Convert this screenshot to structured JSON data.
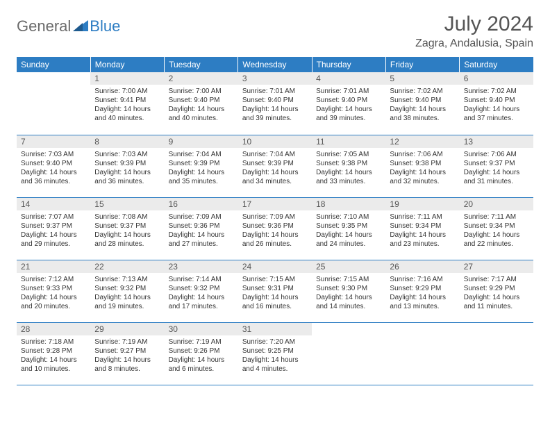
{
  "logo": {
    "general": "General",
    "blue": "Blue"
  },
  "title": "July 2024",
  "location": "Zagra, Andalusia, Spain",
  "colors": {
    "header_bg": "#2d7dc3",
    "header_text": "#ffffff",
    "daynum_bg": "#ebebeb",
    "border": "#2d7dc3",
    "body_text": "#333333",
    "title_text": "#555555"
  },
  "weekdays": [
    "Sunday",
    "Monday",
    "Tuesday",
    "Wednesday",
    "Thursday",
    "Friday",
    "Saturday"
  ],
  "weeks": [
    [
      {
        "n": "",
        "sunrise": "",
        "sunset": "",
        "daylight": ""
      },
      {
        "n": "1",
        "sunrise": "Sunrise: 7:00 AM",
        "sunset": "Sunset: 9:41 PM",
        "daylight": "Daylight: 14 hours and 40 minutes."
      },
      {
        "n": "2",
        "sunrise": "Sunrise: 7:00 AM",
        "sunset": "Sunset: 9:40 PM",
        "daylight": "Daylight: 14 hours and 40 minutes."
      },
      {
        "n": "3",
        "sunrise": "Sunrise: 7:01 AM",
        "sunset": "Sunset: 9:40 PM",
        "daylight": "Daylight: 14 hours and 39 minutes."
      },
      {
        "n": "4",
        "sunrise": "Sunrise: 7:01 AM",
        "sunset": "Sunset: 9:40 PM",
        "daylight": "Daylight: 14 hours and 39 minutes."
      },
      {
        "n": "5",
        "sunrise": "Sunrise: 7:02 AM",
        "sunset": "Sunset: 9:40 PM",
        "daylight": "Daylight: 14 hours and 38 minutes."
      },
      {
        "n": "6",
        "sunrise": "Sunrise: 7:02 AM",
        "sunset": "Sunset: 9:40 PM",
        "daylight": "Daylight: 14 hours and 37 minutes."
      }
    ],
    [
      {
        "n": "7",
        "sunrise": "Sunrise: 7:03 AM",
        "sunset": "Sunset: 9:40 PM",
        "daylight": "Daylight: 14 hours and 36 minutes."
      },
      {
        "n": "8",
        "sunrise": "Sunrise: 7:03 AM",
        "sunset": "Sunset: 9:39 PM",
        "daylight": "Daylight: 14 hours and 36 minutes."
      },
      {
        "n": "9",
        "sunrise": "Sunrise: 7:04 AM",
        "sunset": "Sunset: 9:39 PM",
        "daylight": "Daylight: 14 hours and 35 minutes."
      },
      {
        "n": "10",
        "sunrise": "Sunrise: 7:04 AM",
        "sunset": "Sunset: 9:39 PM",
        "daylight": "Daylight: 14 hours and 34 minutes."
      },
      {
        "n": "11",
        "sunrise": "Sunrise: 7:05 AM",
        "sunset": "Sunset: 9:38 PM",
        "daylight": "Daylight: 14 hours and 33 minutes."
      },
      {
        "n": "12",
        "sunrise": "Sunrise: 7:06 AM",
        "sunset": "Sunset: 9:38 PM",
        "daylight": "Daylight: 14 hours and 32 minutes."
      },
      {
        "n": "13",
        "sunrise": "Sunrise: 7:06 AM",
        "sunset": "Sunset: 9:37 PM",
        "daylight": "Daylight: 14 hours and 31 minutes."
      }
    ],
    [
      {
        "n": "14",
        "sunrise": "Sunrise: 7:07 AM",
        "sunset": "Sunset: 9:37 PM",
        "daylight": "Daylight: 14 hours and 29 minutes."
      },
      {
        "n": "15",
        "sunrise": "Sunrise: 7:08 AM",
        "sunset": "Sunset: 9:37 PM",
        "daylight": "Daylight: 14 hours and 28 minutes."
      },
      {
        "n": "16",
        "sunrise": "Sunrise: 7:09 AM",
        "sunset": "Sunset: 9:36 PM",
        "daylight": "Daylight: 14 hours and 27 minutes."
      },
      {
        "n": "17",
        "sunrise": "Sunrise: 7:09 AM",
        "sunset": "Sunset: 9:36 PM",
        "daylight": "Daylight: 14 hours and 26 minutes."
      },
      {
        "n": "18",
        "sunrise": "Sunrise: 7:10 AM",
        "sunset": "Sunset: 9:35 PM",
        "daylight": "Daylight: 14 hours and 24 minutes."
      },
      {
        "n": "19",
        "sunrise": "Sunrise: 7:11 AM",
        "sunset": "Sunset: 9:34 PM",
        "daylight": "Daylight: 14 hours and 23 minutes."
      },
      {
        "n": "20",
        "sunrise": "Sunrise: 7:11 AM",
        "sunset": "Sunset: 9:34 PM",
        "daylight": "Daylight: 14 hours and 22 minutes."
      }
    ],
    [
      {
        "n": "21",
        "sunrise": "Sunrise: 7:12 AM",
        "sunset": "Sunset: 9:33 PM",
        "daylight": "Daylight: 14 hours and 20 minutes."
      },
      {
        "n": "22",
        "sunrise": "Sunrise: 7:13 AM",
        "sunset": "Sunset: 9:32 PM",
        "daylight": "Daylight: 14 hours and 19 minutes."
      },
      {
        "n": "23",
        "sunrise": "Sunrise: 7:14 AM",
        "sunset": "Sunset: 9:32 PM",
        "daylight": "Daylight: 14 hours and 17 minutes."
      },
      {
        "n": "24",
        "sunrise": "Sunrise: 7:15 AM",
        "sunset": "Sunset: 9:31 PM",
        "daylight": "Daylight: 14 hours and 16 minutes."
      },
      {
        "n": "25",
        "sunrise": "Sunrise: 7:15 AM",
        "sunset": "Sunset: 9:30 PM",
        "daylight": "Daylight: 14 hours and 14 minutes."
      },
      {
        "n": "26",
        "sunrise": "Sunrise: 7:16 AM",
        "sunset": "Sunset: 9:29 PM",
        "daylight": "Daylight: 14 hours and 13 minutes."
      },
      {
        "n": "27",
        "sunrise": "Sunrise: 7:17 AM",
        "sunset": "Sunset: 9:29 PM",
        "daylight": "Daylight: 14 hours and 11 minutes."
      }
    ],
    [
      {
        "n": "28",
        "sunrise": "Sunrise: 7:18 AM",
        "sunset": "Sunset: 9:28 PM",
        "daylight": "Daylight: 14 hours and 10 minutes."
      },
      {
        "n": "29",
        "sunrise": "Sunrise: 7:19 AM",
        "sunset": "Sunset: 9:27 PM",
        "daylight": "Daylight: 14 hours and 8 minutes."
      },
      {
        "n": "30",
        "sunrise": "Sunrise: 7:19 AM",
        "sunset": "Sunset: 9:26 PM",
        "daylight": "Daylight: 14 hours and 6 minutes."
      },
      {
        "n": "31",
        "sunrise": "Sunrise: 7:20 AM",
        "sunset": "Sunset: 9:25 PM",
        "daylight": "Daylight: 14 hours and 4 minutes."
      },
      {
        "n": "",
        "sunrise": "",
        "sunset": "",
        "daylight": ""
      },
      {
        "n": "",
        "sunrise": "",
        "sunset": "",
        "daylight": ""
      },
      {
        "n": "",
        "sunrise": "",
        "sunset": "",
        "daylight": ""
      }
    ]
  ]
}
